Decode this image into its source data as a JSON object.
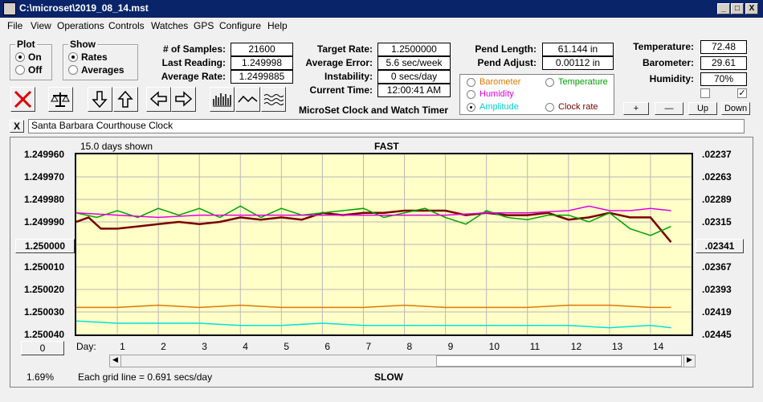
{
  "window": {
    "title": "C:\\microset\\2019_08_14.mst",
    "min": "_",
    "max": "□",
    "close": "X"
  },
  "menu": [
    "File",
    "View",
    "Operations",
    "Controls",
    "Watches",
    "GPS",
    "Configure",
    "Help"
  ],
  "plot_group": {
    "label": "Plot",
    "on": "On",
    "off": "Off",
    "selected": "On"
  },
  "show_group": {
    "label": "Show",
    "rates": "Rates",
    "averages": "Averages",
    "selected": "Rates"
  },
  "stats": {
    "samples_label": "# of Samples:",
    "samples": "21600",
    "last_label": "Last Reading:",
    "last": "1.249998",
    "avg_rate_label": "Average Rate:",
    "avg_rate": "1.2499885",
    "target_label": "Target Rate:",
    "target": "1.2500000",
    "avg_err_label": "Average Error:",
    "avg_err": "5.6 sec/week",
    "instab_label": "Instability:",
    "instab": "0 secs/day",
    "time_label": "Current Time:",
    "time": "12:00:41 AM",
    "pend_len_label": "Pend Length:",
    "pend_len": "61.144 in",
    "pend_adj_label": "Pend Adjust:",
    "pend_adj": "0.00112 in",
    "temp_label": "Temperature:",
    "temp": "72.48",
    "baro_label": "Barometer:",
    "baro": "29.61",
    "hum_label": "Humidity:",
    "hum": "70%"
  },
  "app_caption": "MicroSet Clock and Watch Timer",
  "legend": {
    "barometer": "Barometer",
    "temperature": "Temperature",
    "humidity": "Humidity",
    "amplitude": "Amplitude",
    "clock_rate": "Clock rate",
    "selected": "Amplitude",
    "colors": {
      "barometer": "#e07800",
      "temperature": "#00a000",
      "humidity": "#e000e0",
      "amplitude": "#00e0e0",
      "clock_rate": "#7a0000"
    }
  },
  "pend_buttons": {
    "plus": "+",
    "minus": "—",
    "up": "Up",
    "down": "Down"
  },
  "checkboxes": {
    "left": "",
    "right": "✓"
  },
  "clock_name": "Santa Barbara Courthouse Clock",
  "close_x": "X",
  "chart_data": {
    "type": "line",
    "top_label": "FAST",
    "bottom_label": "SLOW",
    "days_shown": "15.0 days shown",
    "grid_note": "Each grid line = 0.691 secs/day",
    "percent": "1.69%",
    "day_label": "Day:",
    "x_ticks": [
      "1",
      "2",
      "3",
      "4",
      "5",
      "6",
      "7",
      "8",
      "9",
      "10",
      "11",
      "12",
      "13",
      "14"
    ],
    "xlim": [
      0,
      15
    ],
    "left_ticks": [
      "1.249960",
      "1.249970",
      "1.249980",
      "1.249990",
      "1.250000",
      "1.250010",
      "1.250020",
      "1.250030",
      "1.250040"
    ],
    "left_center_button": "1.250000",
    "left_bottom_button": "0",
    "right_ticks": [
      ".02237",
      ".02263",
      ".02289",
      ".02315",
      ".02341",
      ".02367",
      ".02393",
      ".02419",
      ".02445"
    ],
    "right_center_button": ".02341",
    "ylim": [
      1.24996,
      1.25004
    ],
    "series": [
      {
        "name": "Clock rate",
        "color": "#7a0000",
        "x": [
          0,
          0.3,
          0.6,
          1,
          1.5,
          2,
          2.5,
          3,
          3.5,
          4,
          4.5,
          5,
          5.5,
          6,
          6.5,
          7,
          7.5,
          8,
          8.5,
          9,
          9.5,
          10,
          10.5,
          11,
          11.5,
          12,
          12.5,
          13,
          13.5,
          14,
          14.5
        ],
        "y": [
          1.24999,
          1.249988,
          1.249993,
          1.249993,
          1.249992,
          1.249991,
          1.24999,
          1.249991,
          1.24999,
          1.249988,
          1.249989,
          1.249988,
          1.249989,
          1.249986,
          1.249987,
          1.249986,
          1.249986,
          1.249985,
          1.249985,
          1.249985,
          1.249987,
          1.249986,
          1.249987,
          1.249987,
          1.249986,
          1.249989,
          1.249988,
          1.249986,
          1.249988,
          1.249988,
          1.249999
        ]
      },
      {
        "name": "Temperature",
        "color": "#00a000",
        "x": [
          0,
          0.5,
          1,
          1.5,
          2,
          2.5,
          3,
          3.5,
          4,
          4.5,
          5,
          5.5,
          6,
          6.5,
          7,
          7.5,
          8,
          8.5,
          9,
          9.5,
          10,
          10.5,
          11,
          11.5,
          12,
          12.5,
          13,
          13.5,
          14,
          14.5
        ],
        "y": [
          1.249986,
          1.249988,
          1.249985,
          1.249988,
          1.249984,
          1.249987,
          1.249984,
          1.249988,
          1.249983,
          1.249988,
          1.249984,
          1.249987,
          1.249986,
          1.249985,
          1.249984,
          1.249988,
          1.249986,
          1.249984,
          1.249988,
          1.249991,
          1.249985,
          1.249988,
          1.249989,
          1.249987,
          1.249987,
          1.24999,
          1.249986,
          1.249993,
          1.249996,
          1.249992
        ]
      },
      {
        "name": "Humidity",
        "color": "#e000e0",
        "x": [
          0,
          1,
          2,
          3,
          4,
          5,
          6,
          7,
          8,
          9,
          10,
          11,
          12,
          12.5,
          13,
          13.5,
          14,
          14.5
        ],
        "y": [
          1.249986,
          1.249987,
          1.249988,
          1.249987,
          1.249987,
          1.249987,
          1.249987,
          1.249987,
          1.249987,
          1.249987,
          1.249986,
          1.249986,
          1.249985,
          1.249983,
          1.249985,
          1.249985,
          1.249984,
          1.249985
        ]
      },
      {
        "name": "Barometer",
        "color": "#e07800",
        "x": [
          0,
          1,
          2,
          3,
          4,
          5,
          6,
          7,
          8,
          9,
          10,
          11,
          12,
          13,
          14,
          14.5
        ],
        "y": [
          1.250028,
          1.250028,
          1.250027,
          1.250028,
          1.250027,
          1.250028,
          1.250028,
          1.250028,
          1.250027,
          1.250028,
          1.250028,
          1.250028,
          1.250027,
          1.250027,
          1.250028,
          1.250028
        ]
      },
      {
        "name": "Amplitude",
        "color": "#00e0e0",
        "x": [
          0,
          1,
          2,
          3,
          4,
          5,
          6,
          7,
          8,
          9,
          10,
          11,
          12,
          13,
          14,
          14.5
        ],
        "y": [
          1.250034,
          1.250035,
          1.250035,
          1.250035,
          1.250036,
          1.250036,
          1.250035,
          1.250036,
          1.250036,
          1.250036,
          1.250036,
          1.250036,
          1.250036,
          1.250037,
          1.250036,
          1.250037
        ]
      }
    ]
  }
}
